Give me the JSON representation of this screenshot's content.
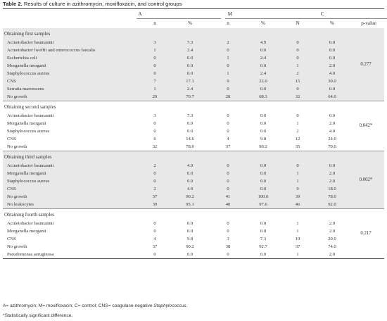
{
  "caption": {
    "label": "Table 2.",
    "text": " Results of culture in azithromycin, moxifloxacin, and control groups"
  },
  "headers": {
    "groups": [
      "A",
      "M",
      "C"
    ],
    "sub": [
      "n",
      "%",
      "n",
      "%",
      "N",
      "%"
    ],
    "pvalue": "p-value"
  },
  "sections": [
    {
      "title": "Obtaining first samples",
      "shaded": true,
      "pvalue": "0.277",
      "rows": [
        {
          "label": "Acinetobacter baumannii",
          "v": [
            "3",
            "7.3",
            "2",
            "4.9",
            "0",
            "0.0"
          ]
        },
        {
          "label": "Acinetobacter lwoffii and enterococcus faecalis",
          "v": [
            "1",
            "2.4",
            "0",
            "0.0",
            "0",
            "0.0"
          ]
        },
        {
          "label": "Escherichia coli",
          "v": [
            "0",
            "0.0",
            "1",
            "2.4",
            "0",
            "0.0"
          ]
        },
        {
          "label": "Morganella morganii",
          "v": [
            "0",
            "0.0",
            "0",
            "0.0",
            "1",
            "2.0"
          ]
        },
        {
          "label": "Staphylococcus aureus",
          "v": [
            "0",
            "0.0",
            "1",
            "2.4",
            "2",
            "4.0"
          ]
        },
        {
          "label": "CNS",
          "v": [
            "7",
            "17.1",
            "9",
            "22.0",
            "15",
            "30.0"
          ]
        },
        {
          "label": "Serratia marcescens",
          "v": [
            "1",
            "2.4",
            "0",
            "0.0",
            "0",
            "0.0"
          ]
        },
        {
          "label": "No growth",
          "v": [
            "29",
            "70.7",
            "28",
            "68.3",
            "32",
            "64.0"
          ]
        }
      ]
    },
    {
      "title": "Obtaining second samples",
      "shaded": false,
      "pvalue": "0.042*",
      "rows": [
        {
          "label": "Acinetobacter baumannii",
          "v": [
            "3",
            "7.3",
            "0",
            "0.0",
            "0",
            "0.0"
          ]
        },
        {
          "label": "Morganella morganii",
          "v": [
            "0",
            "0.0",
            "0",
            "0.0",
            "1",
            "2.0"
          ]
        },
        {
          "label": "Staphylococcus aureus",
          "v": [
            "0",
            "0.0",
            "0",
            "0.0",
            "2",
            "4.0"
          ]
        },
        {
          "label": "CNS",
          "v": [
            "6",
            "14.6",
            "4",
            "9.8",
            "12",
            "24.0"
          ]
        },
        {
          "label": "No growth",
          "v": [
            "32",
            "78.0",
            "37",
            "90.2",
            "35",
            "70.0"
          ]
        }
      ]
    },
    {
      "title": "Obtaining third samples",
      "shaded": true,
      "pvalue": "0.002*",
      "rows": [
        {
          "label": "Acinetobacter baumannii",
          "v": [
            "2",
            "4.9",
            "0",
            "0.0",
            "0",
            "0.0"
          ]
        },
        {
          "label": "Morganella morganii",
          "v": [
            "0",
            "0.0",
            "0",
            "0.0",
            "1",
            "2.0"
          ]
        },
        {
          "label": "Staphylococcus aureus",
          "v": [
            "0",
            "0.0",
            "0",
            "0.0",
            "1",
            "2.0"
          ]
        },
        {
          "label": "CNS",
          "v": [
            "2",
            "4.9",
            "0",
            "0.0",
            "9",
            "18.0"
          ]
        },
        {
          "label": "No growth",
          "v": [
            "37",
            "90.2",
            "41",
            "100.0",
            "39",
            "78.0"
          ]
        },
        {
          "label": "No leukocytes",
          "v": [
            "39",
            "95.1",
            "40",
            "97.6",
            "46",
            "92.0"
          ]
        }
      ]
    },
    {
      "title": "Obtaining fourth samples",
      "shaded": false,
      "pvalue": "0.217",
      "rows": [
        {
          "label": "Acinetobacter baumannii",
          "v": [
            "0",
            "0.0",
            "0",
            "0.0",
            "1",
            "2.0"
          ]
        },
        {
          "label": "Morganella morganii",
          "v": [
            "0",
            "0.0",
            "0",
            "0.0",
            "1",
            "2.0"
          ]
        },
        {
          "label": "CNS",
          "v": [
            "4",
            "9.8",
            "3",
            "7.3",
            "10",
            "20.0"
          ]
        },
        {
          "label": "No growth",
          "v": [
            "37",
            "90.2",
            "38",
            "92.7",
            "37",
            "74.0"
          ]
        },
        {
          "label": "Pseudomonas aeruginosa",
          "v": [
            "0",
            "0.0",
            "0",
            "0.0",
            "1",
            "2.0"
          ]
        }
      ]
    }
  ],
  "footnotes": {
    "abbrev": "A= azithromycin; M= moxifloxacin; C= control; CNS= coagulase-negative ",
    "abbrev_italic": "Staphylococcus",
    "abbrev_end": ".",
    "significance": "*Statistically significant difference."
  }
}
